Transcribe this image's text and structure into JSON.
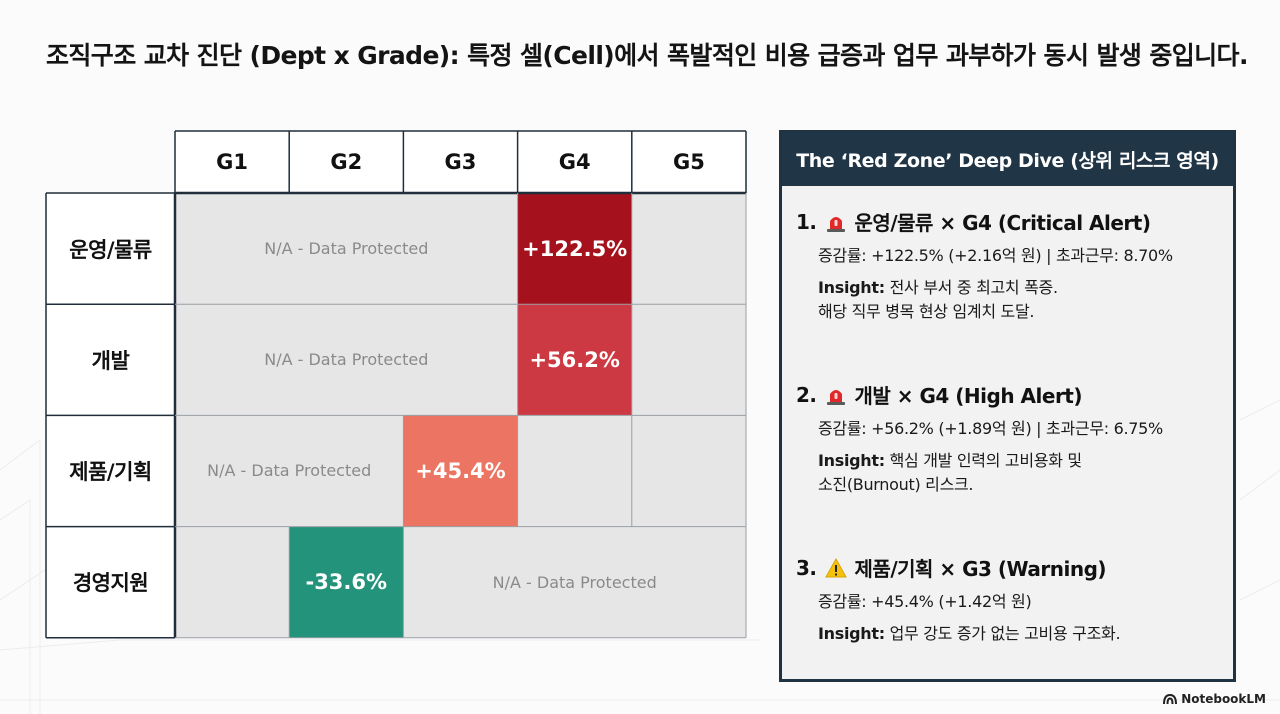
{
  "headline": "조직구조 교차 진단 (Dept x Grade): 특정 셀(Cell)에서 폭발적인 비용 급증과 업무 과부하가 동시 발생 중입니다.",
  "chart_data": {
    "type": "heatmap",
    "columns": [
      "G1",
      "G2",
      "G3",
      "G4",
      "G5"
    ],
    "rows": [
      "운영/물류",
      "개발",
      "제품/기획",
      "경영지원"
    ],
    "na_label": "N/A - Data Protected",
    "na_spans": [
      {
        "row": 0,
        "col_start": 0,
        "col_end": 2
      },
      {
        "row": 1,
        "col_start": 0,
        "col_end": 2
      },
      {
        "row": 2,
        "col_start": 0,
        "col_end": 1
      },
      {
        "row": 3,
        "col_start": 2,
        "col_end": 4
      }
    ],
    "highlight_cells": [
      {
        "row": 0,
        "col": 3,
        "value": 122.5,
        "label": "+122.5%",
        "color": "#a6111e"
      },
      {
        "row": 1,
        "col": 3,
        "value": 56.2,
        "label": "+56.2%",
        "color": "#cd3942"
      },
      {
        "row": 2,
        "col": 2,
        "value": 45.4,
        "label": "+45.4%",
        "color": "#ec7462"
      },
      {
        "row": 3,
        "col": 1,
        "value": -33.6,
        "label": "-33.6%",
        "color": "#23947b"
      }
    ],
    "empty_color": "#e6e6e7"
  },
  "panel": {
    "title": "The ‘Red Zone’ Deep Dive (상위 리스크 영역)",
    "alerts": [
      {
        "num": "1.",
        "icon": "siren-icon",
        "title": "운영/물류 × G4 (Critical Alert)",
        "stats": "증감률: +122.5% (+2.16억 원) | 초과근무: 8.70%",
        "insight_label": "Insight:",
        "insight_1": " 전사 부서 중 최고치 폭증.",
        "insight_2": "해당 직무 병목 현상 임계치 도달."
      },
      {
        "num": "2.",
        "icon": "siren-icon",
        "title": "개발 × G4 (High Alert)",
        "stats": "증감률: +56.2% (+1.89억 원) | 초과근무: 6.75%",
        "insight_label": "Insight:",
        "insight_1": " 핵심 개발 인력의 고비용화 및",
        "insight_2": "소진(Burnout) 리스크."
      },
      {
        "num": "3.",
        "icon": "warning-icon",
        "title": "제품/기획 × G3 (Warning)",
        "stats": "증감률: +45.4% (+1.42억 원)",
        "insight_label": "Insight:",
        "insight_1": " 업무 강도 증가 없는 고비용 구조화.",
        "insight_2": ""
      }
    ]
  },
  "brand": "NotebookLM"
}
